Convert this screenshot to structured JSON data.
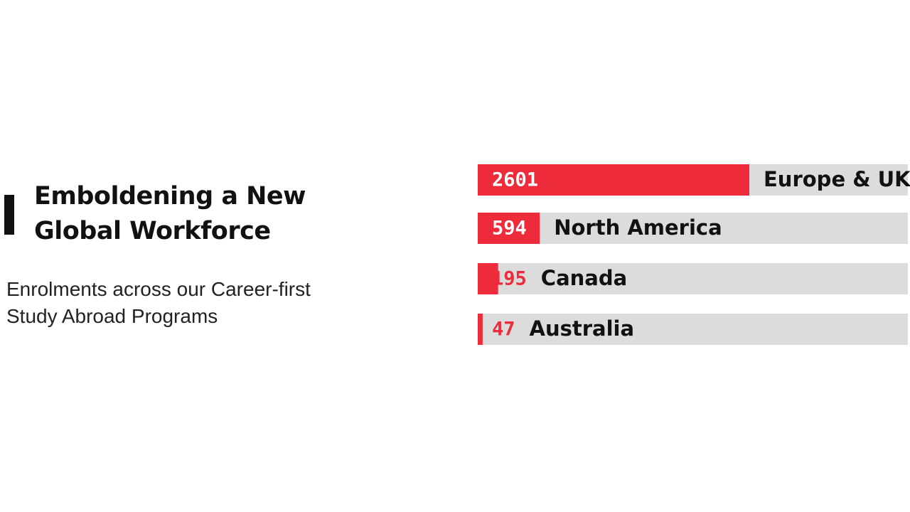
{
  "chart_data": {
    "type": "bar",
    "orientation": "horizontal",
    "title": "Emboldening a New Global Workforce",
    "subtitle": "Enrolments across our Career-first Study Abroad Programs",
    "categories": [
      "Europe & UK",
      "North America",
      "Canada",
      "Australia"
    ],
    "values": [
      2601,
      594,
      195,
      47
    ],
    "color": "#ee2b3b",
    "track_color": "#dcdcdc"
  }
}
